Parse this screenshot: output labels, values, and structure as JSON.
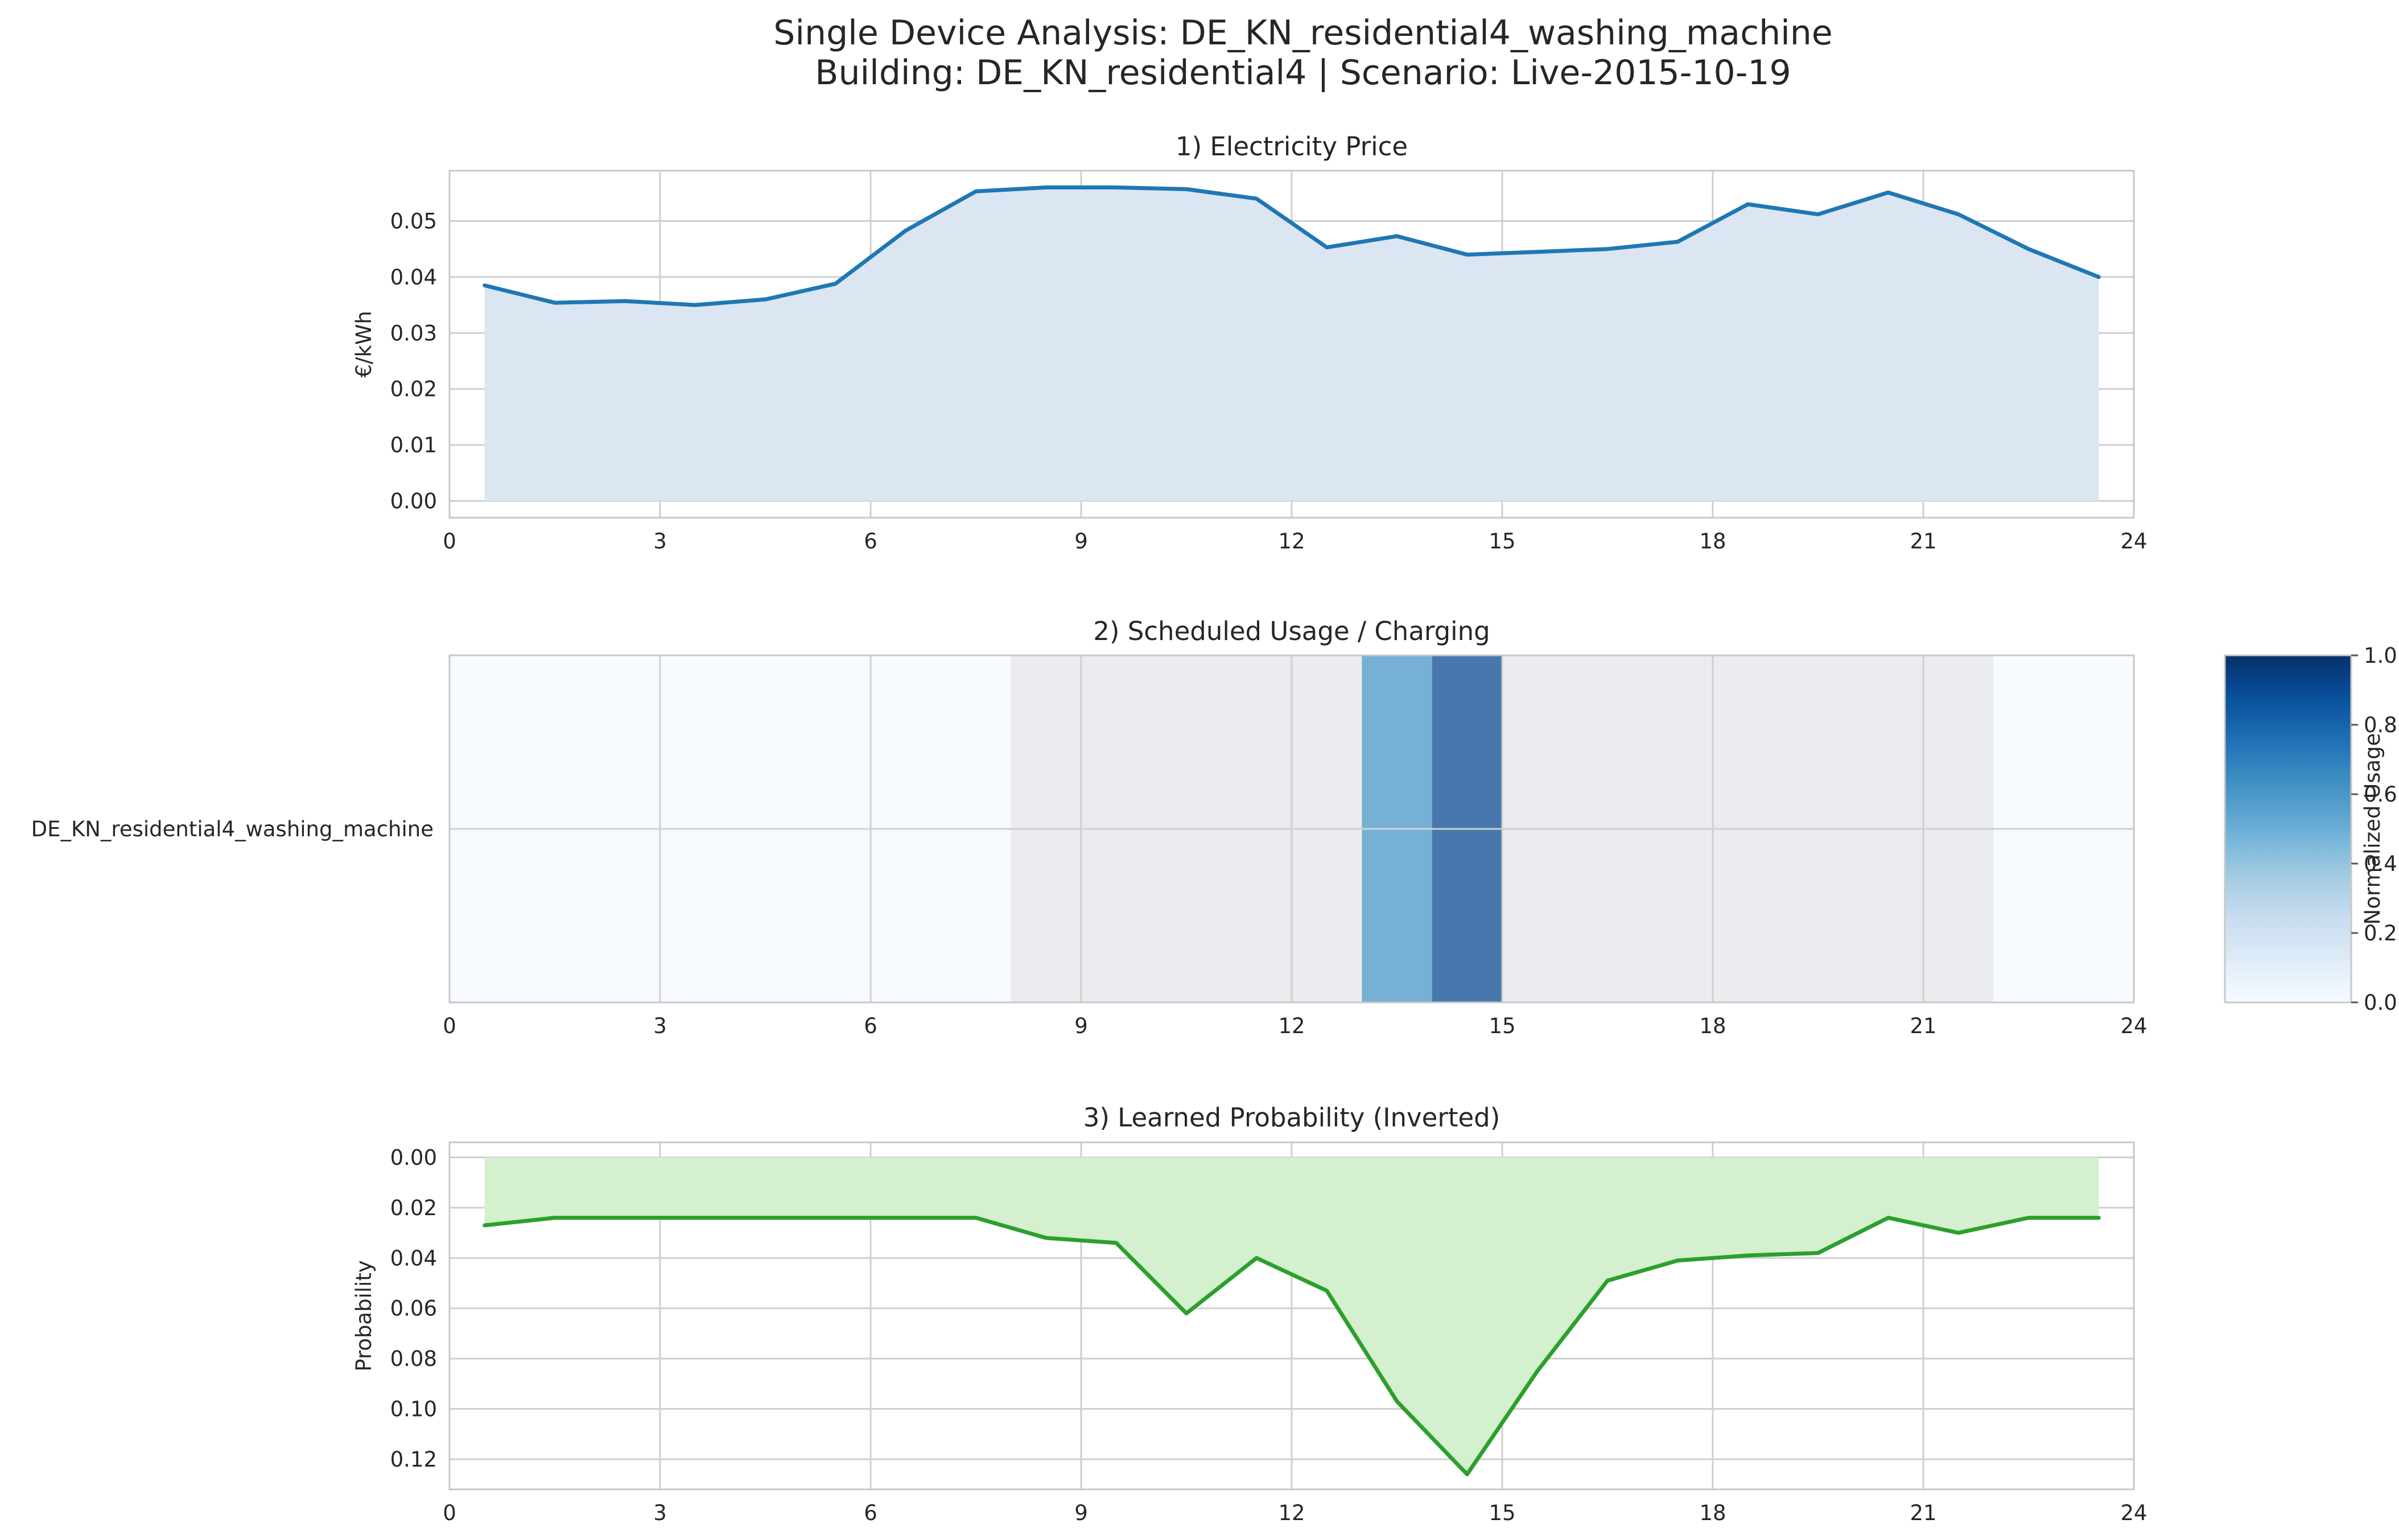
{
  "figure": {
    "title_line1": "Single Device Analysis: DE_KN_residential4_washing_machine",
    "title_line2": "Building: DE_KN_residential4 | Scenario: Live-2015-10-19"
  },
  "chart_data": [
    {
      "type": "area",
      "title": "1) Electricity Price",
      "xlabel": "",
      "ylabel": "€/kWh",
      "xlim": [
        0,
        24
      ],
      "ylim": [
        -0.003,
        0.059
      ],
      "xticks": [
        0,
        3,
        6,
        9,
        12,
        15,
        18,
        21,
        24
      ],
      "yticks": [
        "0.00",
        "0.01",
        "0.02",
        "0.03",
        "0.04",
        "0.05"
      ],
      "grid": true,
      "x": [
        0.5,
        1.5,
        2.5,
        3.5,
        4.5,
        5.5,
        6.5,
        7.5,
        8.5,
        9.5,
        10.5,
        11.5,
        12.5,
        13.5,
        14.5,
        15.5,
        16.5,
        17.5,
        18.5,
        19.5,
        20.5,
        21.5,
        22.5,
        23.5
      ],
      "values": [
        0.0385,
        0.0354,
        0.0357,
        0.035,
        0.036,
        0.0388,
        0.0483,
        0.0553,
        0.056,
        0.056,
        0.0557,
        0.054,
        0.0453,
        0.0473,
        0.044,
        0.0445,
        0.045,
        0.0463,
        0.053,
        0.0512,
        0.0551,
        0.0512,
        0.045,
        0.04
      ],
      "line_color": "#1f77b4",
      "fill_color": "#dce6f2"
    },
    {
      "type": "heatmap",
      "title": "2) Scheduled Usage / Charging",
      "xlim": [
        0,
        24
      ],
      "xticks": [
        0,
        3,
        6,
        9,
        12,
        15,
        18,
        21,
        24
      ],
      "row_label": "DE_KN_residential4_washing_machine",
      "allowed_window": [
        8,
        22
      ],
      "usage": [
        {
          "start": 13,
          "end": 14,
          "value": 0.6
        },
        {
          "start": 14,
          "end": 15,
          "value": 0.9
        }
      ],
      "colorbar": {
        "label": "Normalized Usage",
        "ticks": [
          "0.0",
          "0.2",
          "0.4",
          "0.6",
          "0.8",
          "1.0"
        ],
        "range": [
          0,
          1
        ],
        "colormap": "Blues"
      },
      "outside_window_color": "#f7fbff",
      "window_color": "#eaecf0"
    },
    {
      "type": "area",
      "title": "3) Learned Probability (Inverted)",
      "xlabel": "",
      "ylabel": "Probability",
      "inverted_y": true,
      "xlim": [
        0,
        24
      ],
      "ylim": [
        -0.006,
        0.132
      ],
      "xticks": [
        0,
        3,
        6,
        9,
        12,
        15,
        18,
        21,
        24
      ],
      "yticks": [
        "0.00",
        "0.02",
        "0.04",
        "0.06",
        "0.08",
        "0.10",
        "0.12"
      ],
      "grid": true,
      "x": [
        0.5,
        1.5,
        2.5,
        3.5,
        4.5,
        5.5,
        6.5,
        7.5,
        8.5,
        9.5,
        10.5,
        11.5,
        12.5,
        13.5,
        14.5,
        15.5,
        16.5,
        17.5,
        18.5,
        19.5,
        20.5,
        21.5,
        22.5,
        23.5
      ],
      "values": [
        0.027,
        0.024,
        0.024,
        0.024,
        0.024,
        0.024,
        0.024,
        0.024,
        0.032,
        0.034,
        0.062,
        0.04,
        0.053,
        0.097,
        0.126,
        0.085,
        0.049,
        0.041,
        0.039,
        0.038,
        0.024,
        0.03,
        0.024,
        0.024
      ],
      "line_color": "#2ca02c",
      "fill_color": "#d4f0cf"
    }
  ]
}
